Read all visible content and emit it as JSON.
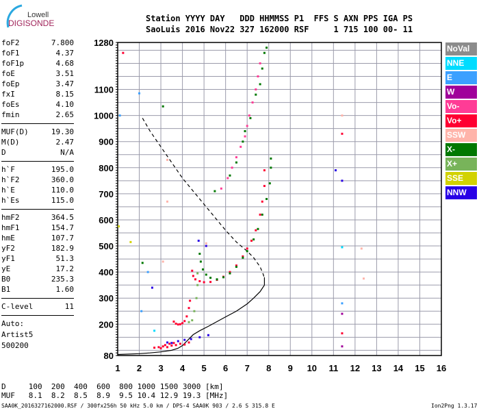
{
  "logo": {
    "top": "Lowell",
    "bottom": "DIGISONDE"
  },
  "header": {
    "line1": "Station YYYY DAY   DDD HHMMSS P1  FFS S AXN PPS IGA PS",
    "line2": "SaoLuis 2016 Nov22 327 162000 RSF     1 715 100 00- 11"
  },
  "params": [
    [
      [
        "foF2",
        "7.800"
      ],
      [
        "foF1",
        "4.37"
      ],
      [
        "foF1p",
        "4.68"
      ],
      [
        "foE",
        "3.51"
      ],
      [
        "foEp",
        "3.47"
      ],
      [
        "fxI",
        "8.15"
      ],
      [
        "foEs",
        "4.10"
      ],
      [
        "fmin",
        "2.65"
      ]
    ],
    [
      [
        "MUF(D)",
        "19.30"
      ],
      [
        "M(D)",
        "2.47"
      ],
      [
        "D",
        "N/A"
      ]
    ],
    [
      [
        "h`F",
        "195.0"
      ],
      [
        "h`F2",
        "360.0"
      ],
      [
        "h`E",
        "110.0"
      ],
      [
        "h`Es",
        "115.0"
      ]
    ],
    [
      [
        "hmF2",
        "364.5"
      ],
      [
        "hmF1",
        "154.7"
      ],
      [
        "hmE",
        "107.7"
      ],
      [
        "yF2",
        "182.9"
      ],
      [
        "yF1",
        "51.3"
      ],
      [
        "yE",
        "17.2"
      ],
      [
        "B0",
        "235.3"
      ],
      [
        "B1",
        "1.60"
      ]
    ],
    [
      [
        "C-level",
        "11"
      ]
    ]
  ],
  "auto": [
    "Auto:",
    "Artist5",
    "500200"
  ],
  "muf_table": {
    "d_line": "D     100  200  400  600  800 1000 1500 3000 [km]",
    "muf_line": "MUF   8.1  8.2  8.5  8.9  9.5 10.4 12.9 19.3 [MHz]"
  },
  "footer": {
    "left": "SAA0K_2016327162000.RSF / 300fx256h 50 kHz 5.0 km / DPS-4 SAA0K 903 / 2.6 S 315.8 E",
    "right": "Ion2Png 1.3.17"
  },
  "legend": [
    {
      "label": "NoVal",
      "color": "#8c8c8c"
    },
    {
      "label": "NNE",
      "color": "#00dcff"
    },
    {
      "label": "E",
      "color": "#3ca0ff"
    },
    {
      "label": "W",
      "color": "#a0009a"
    },
    {
      "label": "Vo-",
      "color": "#ff3c96"
    },
    {
      "label": "Vo+",
      "color": "#ff0032"
    },
    {
      "label": "SSW",
      "color": "#ffb4aa"
    },
    {
      "label": "X-",
      "color": "#007800"
    },
    {
      "label": "X+",
      "color": "#78b45a"
    },
    {
      "label": "SSE",
      "color": "#d2d200"
    },
    {
      "label": "NNW",
      "color": "#2800e6"
    }
  ],
  "chart_data": {
    "type": "scatter",
    "xlim": [
      1,
      16
    ],
    "ylim": [
      80,
      1280
    ],
    "xticks": [
      1,
      2,
      3,
      4,
      5,
      6,
      7,
      8,
      9,
      10,
      11,
      12,
      13,
      14,
      15,
      16
    ],
    "yticks": [
      80,
      200,
      300,
      400,
      500,
      600,
      700,
      800,
      900,
      1000,
      1100,
      1280
    ],
    "series": [
      {
        "name": "Vo+ F1",
        "color": "#ff0032",
        "points": [
          [
            3.6,
            210
          ],
          [
            3.7,
            202
          ],
          [
            3.8,
            199
          ],
          [
            3.9,
            200
          ],
          [
            4.0,
            204
          ],
          [
            4.1,
            212
          ],
          [
            4.2,
            230
          ],
          [
            4.3,
            262
          ],
          [
            4.35,
            290
          ]
        ]
      },
      {
        "name": "Vo+ F2",
        "color": "#ff0032",
        "points": [
          [
            4.45,
            405
          ],
          [
            4.5,
            385
          ],
          [
            4.6,
            372
          ],
          [
            4.8,
            365
          ],
          [
            5.0,
            361
          ],
          [
            5.3,
            362
          ],
          [
            5.6,
            370
          ],
          [
            5.9,
            382
          ],
          [
            6.2,
            400
          ],
          [
            6.5,
            425
          ],
          [
            6.8,
            460
          ],
          [
            7.0,
            490
          ],
          [
            7.2,
            520
          ],
          [
            7.4,
            560
          ],
          [
            7.6,
            620
          ],
          [
            7.7,
            670
          ],
          [
            7.8,
            730
          ],
          [
            7.8,
            790
          ]
        ]
      },
      {
        "name": "X- F1",
        "color": "#78b45a",
        "points": [
          [
            4.3,
            208
          ],
          [
            4.45,
            215
          ],
          [
            4.55,
            250
          ],
          [
            4.65,
            300
          ],
          [
            4.7,
            350
          ],
          [
            4.7,
            395
          ]
        ]
      },
      {
        "name": "X- F2",
        "color": "#007800",
        "points": [
          [
            4.8,
            470
          ],
          [
            4.85,
            440
          ],
          [
            4.95,
            410
          ],
          [
            5.1,
            390
          ],
          [
            5.3,
            378
          ],
          [
            5.6,
            372
          ],
          [
            5.9,
            380
          ],
          [
            6.2,
            395
          ],
          [
            6.5,
            420
          ],
          [
            6.8,
            455
          ],
          [
            7.0,
            480
          ],
          [
            7.3,
            525
          ],
          [
            7.5,
            565
          ],
          [
            7.7,
            620
          ],
          [
            7.9,
            680
          ],
          [
            8.05,
            740
          ],
          [
            8.1,
            800
          ],
          [
            8.1,
            835
          ]
        ]
      },
      {
        "name": "Vo- multihop",
        "color": "#ff3c96",
        "points": [
          [
            5.8,
            720
          ],
          [
            6.1,
            760
          ],
          [
            6.3,
            800
          ],
          [
            6.5,
            840
          ],
          [
            6.7,
            880
          ],
          [
            6.9,
            920
          ],
          [
            7.0,
            960
          ],
          [
            7.1,
            1000
          ],
          [
            7.25,
            1050
          ],
          [
            7.4,
            1100
          ],
          [
            7.5,
            1150
          ],
          [
            7.6,
            1200
          ]
        ]
      },
      {
        "name": "X- multihop",
        "color": "#007800",
        "points": [
          [
            5.5,
            710
          ],
          [
            6.2,
            770
          ],
          [
            6.5,
            820
          ],
          [
            6.8,
            900
          ],
          [
            6.9,
            940
          ],
          [
            7.15,
            990
          ],
          [
            7.4,
            1080
          ],
          [
            7.6,
            1120
          ],
          [
            7.7,
            1180
          ],
          [
            7.8,
            1240
          ],
          [
            7.9,
            1260
          ]
        ]
      },
      {
        "name": "E layer",
        "color": "#ff0032",
        "points": [
          [
            2.7,
            110
          ],
          [
            2.9,
            112
          ],
          [
            3.1,
            115
          ],
          [
            3.3,
            112
          ],
          [
            3.5,
            118
          ],
          [
            3.7,
            120
          ],
          [
            3.9,
            125
          ],
          [
            4.1,
            122
          ],
          [
            4.3,
            130
          ],
          [
            3.2,
            120
          ],
          [
            3.4,
            125
          ],
          [
            3.6,
            128
          ],
          [
            3.0,
            108
          ]
        ]
      },
      {
        "name": "E layer W",
        "color": "#2800e6",
        "points": [
          [
            3.3,
            130
          ],
          [
            3.5,
            128
          ],
          [
            3.8,
            135
          ],
          [
            4.1,
            140
          ],
          [
            4.4,
            143
          ],
          [
            4.8,
            150
          ],
          [
            5.2,
            158
          ],
          [
            2.6,
            340
          ],
          [
            5.1,
            500
          ],
          [
            4.75,
            520
          ],
          [
            11.1,
            790
          ],
          [
            11.4,
            750
          ]
        ]
      },
      {
        "name": "Noise",
        "color": "#ffb4aa",
        "points": [
          [
            3.3,
            830
          ],
          [
            3.3,
            670
          ],
          [
            3.1,
            440
          ],
          [
            5.1,
            510
          ],
          [
            11.4,
            1000
          ],
          [
            12.3,
            490
          ],
          [
            12.4,
            375
          ]
        ]
      },
      {
        "name": "Noise Vo+",
        "color": "#ff0032",
        "points": [
          [
            1.25,
            1240
          ],
          [
            11.4,
            930
          ],
          [
            11.4,
            165
          ]
        ]
      },
      {
        "name": "Noise W",
        "color": "#a0009a",
        "points": [
          [
            11.4,
            240
          ],
          [
            11.4,
            115
          ]
        ]
      },
      {
        "name": "Noise E",
        "color": "#3ca0ff",
        "points": [
          [
            2.0,
            1085
          ],
          [
            1.1,
            1000
          ],
          [
            2.4,
            400
          ],
          [
            2.1,
            250
          ],
          [
            11.4,
            280
          ]
        ]
      },
      {
        "name": "Noise NNE",
        "color": "#00dcff",
        "points": [
          [
            2.7,
            175
          ],
          [
            11.4,
            495
          ]
        ]
      },
      {
        "name": "Noise X",
        "color": "#007800",
        "points": [
          [
            2.15,
            435
          ],
          [
            3.1,
            1035
          ]
        ]
      },
      {
        "name": "Noise SSE",
        "color": "#d2d200",
        "points": [
          [
            1.6,
            515
          ],
          [
            1.05,
            575
          ]
        ]
      }
    ],
    "profile": {
      "color": "#000000",
      "points": [
        [
          1.0,
          84
        ],
        [
          2.0,
          87
        ],
        [
          2.5,
          90
        ],
        [
          3.0,
          94
        ],
        [
          3.5,
          100
        ],
        [
          3.8,
          108
        ],
        [
          4.0,
          118
        ],
        [
          4.2,
          135
        ],
        [
          4.5,
          160
        ],
        [
          4.8,
          175
        ],
        [
          5.2,
          192
        ],
        [
          5.6,
          210
        ],
        [
          6.0,
          228
        ],
        [
          6.5,
          250
        ],
        [
          7.0,
          278
        ],
        [
          7.3,
          300
        ],
        [
          7.6,
          325
        ],
        [
          7.8,
          350
        ],
        [
          7.8,
          380
        ]
      ]
    },
    "dashed": {
      "color": "#000000",
      "points": [
        [
          2.15,
          990
        ],
        [
          2.5,
          940
        ],
        [
          3.0,
          880
        ],
        [
          3.5,
          820
        ],
        [
          4.0,
          760
        ],
        [
          4.5,
          710
        ],
        [
          5.0,
          660
        ],
        [
          5.5,
          610
        ],
        [
          6.0,
          560
        ],
        [
          6.5,
          515
        ],
        [
          7.0,
          480
        ],
        [
          7.3,
          455
        ],
        [
          7.6,
          420
        ],
        [
          7.75,
          390
        ],
        [
          7.8,
          375
        ]
      ]
    }
  }
}
